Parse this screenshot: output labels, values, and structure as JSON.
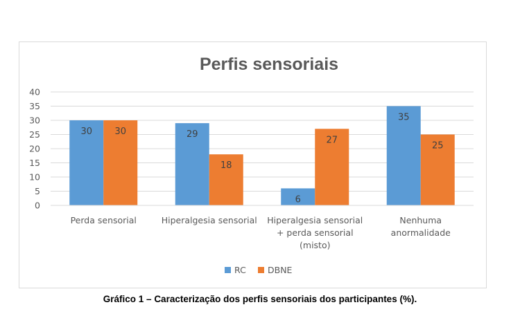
{
  "chart_data": {
    "type": "bar",
    "title": "Perfis sensoriais",
    "categories": [
      [
        "Perda sensorial"
      ],
      [
        "Hiperalgesia sensorial"
      ],
      [
        "Hiperalgesia sensorial",
        "+ perda sensorial",
        "(misto)"
      ],
      [
        "Nenhuma",
        "anormalidade"
      ]
    ],
    "series": [
      {
        "name": "RC",
        "color": "#5b9bd5",
        "values": [
          30,
          29,
          6,
          35
        ]
      },
      {
        "name": "DBNE",
        "color": "#ed7d31",
        "values": [
          30,
          18,
          27,
          25
        ]
      }
    ],
    "ylim": [
      0,
      40
    ],
    "yticks": [
      0,
      5,
      10,
      15,
      20,
      25,
      30,
      35,
      40
    ],
    "grid": true,
    "legend_position": "bottom",
    "data_labels": true
  },
  "caption": "Gráfico 1 – Caracterização dos perfis sensoriais dos participantes (%)."
}
